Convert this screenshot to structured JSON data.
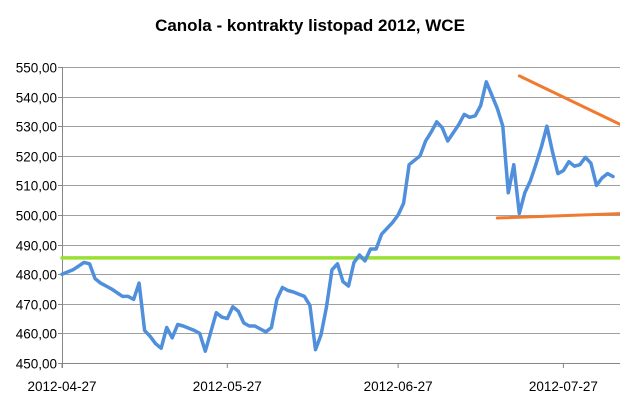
{
  "chart_data": {
    "type": "line",
    "title": "Canola - kontrakty listopad 2012, WCE",
    "xlabel": "",
    "ylabel": "",
    "ylim": [
      450,
      550
    ],
    "y_ticks": [
      "450,00",
      "460,00",
      "470,00",
      "480,00",
      "490,00",
      "500,00",
      "510,00",
      "520,00",
      "530,00",
      "540,00",
      "550,00"
    ],
    "y_tick_values": [
      450,
      460,
      470,
      480,
      490,
      500,
      510,
      520,
      530,
      540,
      550
    ],
    "x_tick_labels": [
      "2012-04-27",
      "2012-05-27",
      "2012-06-27",
      "2012-07-27"
    ],
    "x_tick_dates": [
      "2012-04-27",
      "2012-05-27",
      "2012-06-27",
      "2012-07-27"
    ],
    "xlim": [
      "2012-04-27",
      "2012-08-07"
    ],
    "grid": true,
    "legend": "none",
    "colors": {
      "price": "#4f8fdc",
      "support": "#99e033",
      "trend": "#f07a30",
      "grid": "#a0a0a0"
    },
    "series": [
      {
        "kind": "price",
        "x": [
          "2012-04-27",
          "2012-04-29",
          "2012-05-01",
          "2012-05-02",
          "2012-05-03",
          "2012-05-04",
          "2012-05-06",
          "2012-05-08",
          "2012-05-09",
          "2012-05-10",
          "2012-05-11",
          "2012-05-12",
          "2012-05-13",
          "2012-05-14",
          "2012-05-15",
          "2012-05-16",
          "2012-05-17",
          "2012-05-18",
          "2012-05-19",
          "2012-05-21",
          "2012-05-22",
          "2012-05-23",
          "2012-05-25",
          "2012-05-26",
          "2012-05-27",
          "2012-05-28",
          "2012-05-29",
          "2012-05-30",
          "2012-05-31",
          "2012-06-01",
          "2012-06-02",
          "2012-06-03",
          "2012-06-04",
          "2012-06-05",
          "2012-06-06",
          "2012-06-07",
          "2012-06-08",
          "2012-06-10",
          "2012-06-11",
          "2012-06-12",
          "2012-06-13",
          "2012-06-14",
          "2012-06-15",
          "2012-06-16",
          "2012-06-17",
          "2012-06-18",
          "2012-06-19",
          "2012-06-20",
          "2012-06-21",
          "2012-06-22",
          "2012-06-23",
          "2012-06-24",
          "2012-06-25",
          "2012-06-26",
          "2012-06-27",
          "2012-06-28",
          "2012-06-29",
          "2012-07-01",
          "2012-07-02",
          "2012-07-03",
          "2012-07-04",
          "2012-07-05",
          "2012-07-06",
          "2012-07-08",
          "2012-07-09",
          "2012-07-10",
          "2012-07-11",
          "2012-07-12",
          "2012-07-13",
          "2012-07-15",
          "2012-07-16",
          "2012-07-17",
          "2012-07-18",
          "2012-07-19",
          "2012-07-20",
          "2012-07-21",
          "2012-07-22",
          "2012-07-23",
          "2012-07-24",
          "2012-07-25",
          "2012-07-26",
          "2012-07-27",
          "2012-07-28",
          "2012-07-29",
          "2012-07-30",
          "2012-07-31",
          "2012-08-01",
          "2012-08-02",
          "2012-08-03",
          "2012-08-04",
          "2012-08-05"
        ],
        "y": [
          480.0,
          481.5,
          484.0,
          483.5,
          478.5,
          477.0,
          475.0,
          472.5,
          472.5,
          471.5,
          477.0,
          461.0,
          459.0,
          456.5,
          455.0,
          462.0,
          458.5,
          463.0,
          462.5,
          461.0,
          460.0,
          454.0,
          467.0,
          465.5,
          465.0,
          469.0,
          467.5,
          463.5,
          462.5,
          462.5,
          461.5,
          460.5,
          462.0,
          471.5,
          475.5,
          474.5,
          474.0,
          472.5,
          469.5,
          454.5,
          459.5,
          469.0,
          481.5,
          483.5,
          477.5,
          476.0,
          484.0,
          486.5,
          484.5,
          488.5,
          488.5,
          493.5,
          495.5,
          497.5,
          500.0,
          504.0,
          517.0,
          520.0,
          525.0,
          528.0,
          531.5,
          529.5,
          525.0,
          530.5,
          534.0,
          533.0,
          533.5,
          537.0,
          545.0,
          536.0,
          530.0,
          507.5,
          517.0,
          500.5,
          507.5,
          511.5,
          517.0,
          523.0,
          530.0,
          521.5,
          514.0,
          515.0,
          518.0,
          516.5,
          517.0,
          519.5,
          517.5,
          510.0,
          512.5,
          514.0,
          513.0
        ]
      },
      {
        "kind": "support",
        "x": [
          "2012-04-27",
          "2012-08-07"
        ],
        "y": [
          485.5,
          485.5
        ]
      },
      {
        "kind": "trend",
        "x": [
          "2012-07-19",
          "2012-08-07"
        ],
        "y": [
          547.0,
          530.0
        ]
      },
      {
        "kind": "trend",
        "x": [
          "2012-07-15",
          "2012-08-07"
        ],
        "y": [
          499.0,
          500.5
        ]
      }
    ]
  }
}
